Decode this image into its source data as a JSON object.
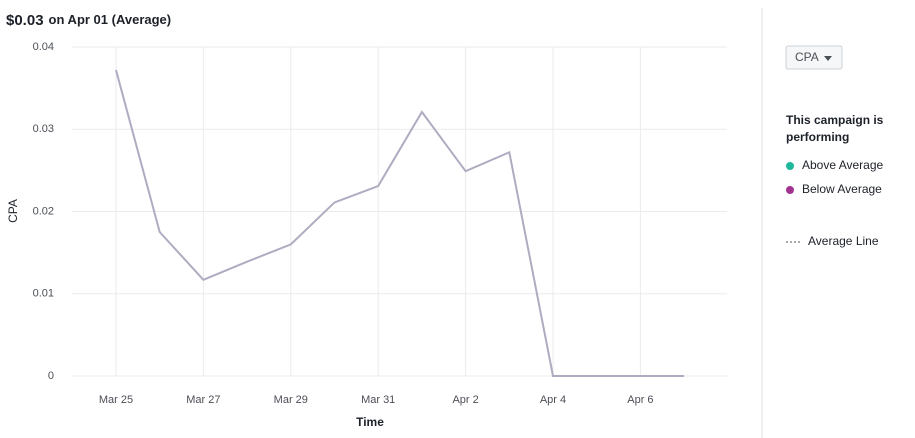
{
  "chart_data": {
    "type": "line",
    "title_value": "$0.03",
    "title_rest": "on Apr 01 (Average)",
    "x_label": "Time",
    "y_label": "CPA",
    "categories": [
      "Mar 25",
      null,
      "Mar 27",
      null,
      "Mar 29",
      null,
      "Mar 31",
      null,
      "Apr 2",
      null,
      "Apr 4",
      null,
      "Apr 6",
      null
    ],
    "values": [
      0.0372,
      0.0175,
      0.0117,
      0.0139,
      0.016,
      0.0211,
      0.0231,
      0.0321,
      0.0249,
      0.0272,
      0,
      0,
      0,
      0
    ],
    "color": "#aeacc0",
    "ylim": [
      0,
      0.04
    ],
    "yticks": [
      0,
      0.01,
      0.02,
      0.03,
      0.04
    ],
    "grid": true
  },
  "controls": {
    "metric_dropdown": "CPA"
  },
  "legend": {
    "heading_lines": [
      "This campaign is",
      "performing"
    ],
    "items": [
      {
        "name": "Above Average",
        "color": "#1fb89c",
        "style": "dot"
      },
      {
        "name": "Below Average",
        "color": "#a3338f",
        "style": "dot"
      },
      {
        "name": "Average Line",
        "color": "#555555",
        "style": "dotted"
      }
    ]
  }
}
